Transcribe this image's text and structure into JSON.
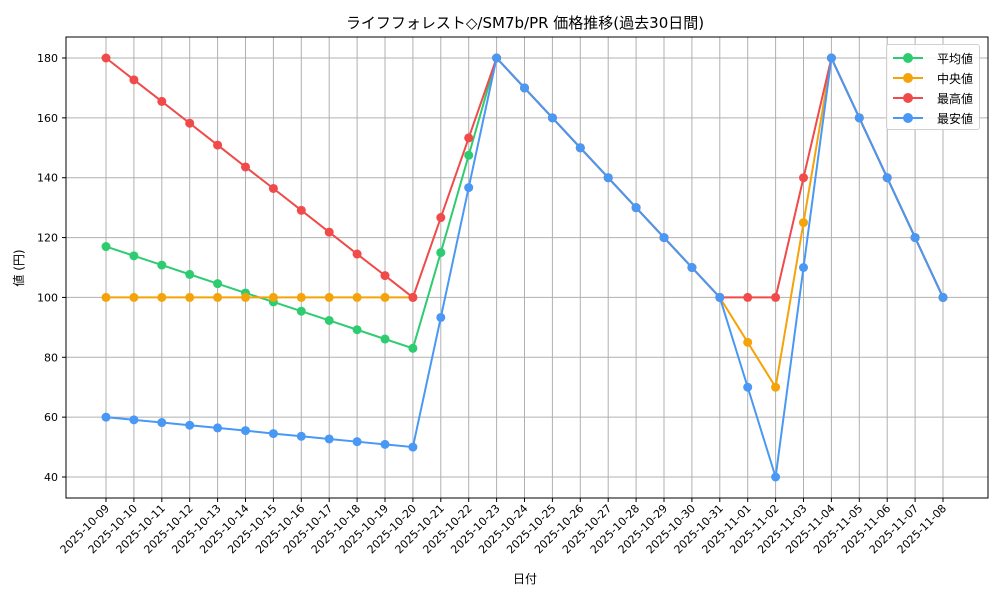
{
  "chart_data": {
    "type": "line",
    "title": "ライフフォレスト◇/SM7b/PR 価格推移(過去30日間)",
    "xlabel": "日付",
    "ylabel": "値 (円)",
    "ylim": [
      33,
      187
    ],
    "yticks": [
      40,
      60,
      80,
      100,
      120,
      140,
      160,
      180
    ],
    "grid": true,
    "legend_position": "upper right",
    "x": [
      "2025-10-09",
      "2025-10-10",
      "2025-10-11",
      "2025-10-12",
      "2025-10-13",
      "2025-10-14",
      "2025-10-15",
      "2025-10-16",
      "2025-10-17",
      "2025-10-18",
      "2025-10-19",
      "2025-10-20",
      "2025-10-21",
      "2025-10-22",
      "2025-10-23",
      "2025-10-24",
      "2025-10-25",
      "2025-10-26",
      "2025-10-27",
      "2025-10-28",
      "2025-10-29",
      "2025-10-30",
      "2025-10-31",
      "2025-11-01",
      "2025-11-02",
      "2025-11-03",
      "2025-11-04",
      "2025-11-05",
      "2025-11-06",
      "2025-11-07",
      "2025-11-08"
    ],
    "series": [
      {
        "name": "平均値",
        "color": "#2ecc71",
        "values": [
          117,
          113.9,
          110.8,
          107.7,
          104.6,
          101.5,
          98.5,
          95.4,
          92.3,
          89.2,
          86.1,
          83,
          115,
          147.5,
          180,
          170,
          160,
          150,
          140,
          130,
          120,
          110,
          100,
          null,
          null,
          null,
          180,
          160,
          140,
          120,
          100
        ]
      },
      {
        "name": "中央値",
        "color": "#f5a30a",
        "values": [
          100,
          100,
          100,
          100,
          100,
          100,
          100,
          100,
          100,
          100,
          100,
          100,
          null,
          null,
          180,
          170,
          160,
          150,
          140,
          130,
          120,
          110,
          100,
          85,
          70,
          125,
          180,
          160,
          140,
          120,
          100
        ]
      },
      {
        "name": "最高値",
        "color": "#f04a4a",
        "values": [
          180,
          172.7,
          165.5,
          158.2,
          150.9,
          143.6,
          136.4,
          129.1,
          121.8,
          114.5,
          107.3,
          100,
          126.7,
          153.3,
          180,
          170,
          160,
          150,
          140,
          130,
          120,
          110,
          100,
          100,
          100,
          140,
          180,
          160,
          140,
          120,
          100
        ]
      },
      {
        "name": "最安値",
        "color": "#4a98f5",
        "values": [
          60,
          59.1,
          58.2,
          57.3,
          56.4,
          55.5,
          54.5,
          53.6,
          52.7,
          51.8,
          50.9,
          50,
          93.3,
          136.7,
          180,
          170,
          160,
          150,
          140,
          130,
          120,
          110,
          100,
          70,
          40,
          110,
          180,
          160,
          140,
          120,
          100
        ]
      }
    ]
  },
  "legend": {
    "items": [
      {
        "label": "平均値",
        "color": "#2ecc71"
      },
      {
        "label": "中央値",
        "color": "#f5a30a"
      },
      {
        "label": "最高値",
        "color": "#f04a4a"
      },
      {
        "label": "最安値",
        "color": "#4a98f5"
      }
    ]
  }
}
